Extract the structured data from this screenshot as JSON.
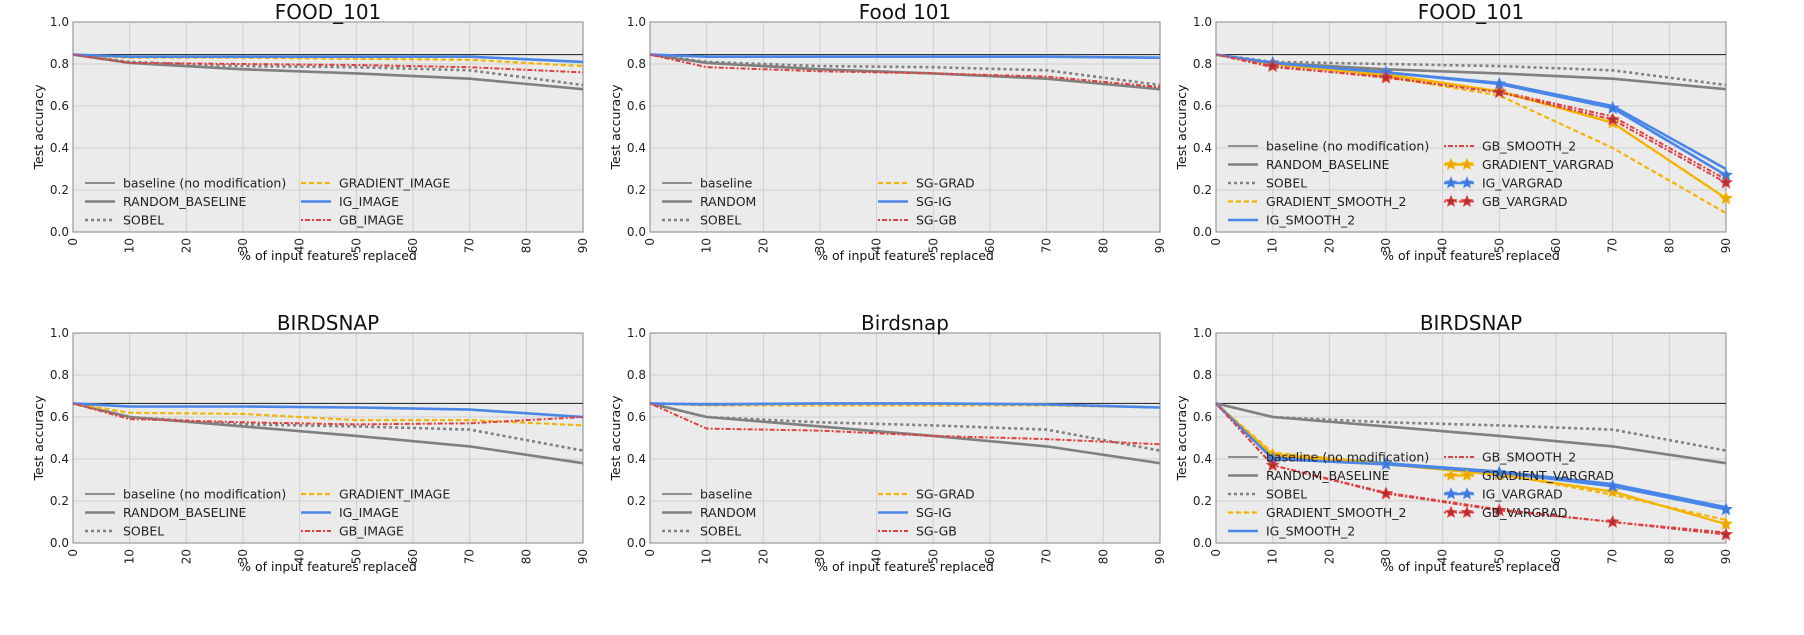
{
  "colors": {
    "baseline": "#333333",
    "random": "#808080",
    "sobel": "#808080",
    "gradient": "#f5b400",
    "ig": "#4a86e8",
    "gb": "#e04040",
    "vargrad_gb": "#b03030",
    "axes_bg": "#ebebeb",
    "grid": "#cfcfcf"
  },
  "chart_data": [
    {
      "type": "line",
      "title": "FOOD_101",
      "xlabel": "% of input features replaced",
      "ylabel": "Test accuracy",
      "xlim": [
        0,
        90
      ],
      "ylim": [
        0.0,
        1.0
      ],
      "xticks": [
        "0",
        "10",
        "20",
        "30",
        "40",
        "50",
        "60",
        "70",
        "80",
        "90"
      ],
      "yticks": [
        "0.0",
        "0.2",
        "0.4",
        "0.6",
        "0.8",
        "1.0"
      ],
      "grid": true,
      "legend_position": "bottom-left",
      "legend_cols": 2,
      "x": [
        0,
        10,
        30,
        50,
        70,
        90
      ],
      "series": [
        {
          "name": "baseline (no modification)",
          "style": "baseline",
          "values": [
            0.845,
            0.845,
            0.845,
            0.845,
            0.845,
            0.845
          ]
        },
        {
          "name": "RANDOM_BASELINE",
          "style": "random",
          "values": [
            0.845,
            0.805,
            0.775,
            0.755,
            0.73,
            0.68
          ]
        },
        {
          "name": "SOBEL",
          "style": "sobel",
          "values": [
            0.845,
            0.81,
            0.79,
            0.785,
            0.77,
            0.7
          ]
        },
        {
          "name": "GRADIENT_IMAGE",
          "style": "gradient",
          "values": [
            0.845,
            0.83,
            0.83,
            0.825,
            0.82,
            0.79
          ]
        },
        {
          "name": "IG_IMAGE",
          "style": "ig",
          "values": [
            0.845,
            0.835,
            0.835,
            0.835,
            0.835,
            0.81
          ]
        },
        {
          "name": "GB_IMAGE",
          "style": "gb",
          "values": [
            0.845,
            0.805,
            0.8,
            0.795,
            0.785,
            0.76
          ]
        }
      ]
    },
    {
      "type": "line",
      "title": "Food 101",
      "xlabel": "% of input features replaced",
      "ylabel": "Test accuracy",
      "xlim": [
        0,
        90
      ],
      "ylim": [
        0.0,
        1.0
      ],
      "xticks": [
        "0",
        "10",
        "20",
        "30",
        "40",
        "50",
        "60",
        "70",
        "80",
        "90"
      ],
      "yticks": [
        "0.0",
        "0.2",
        "0.4",
        "0.6",
        "0.8",
        "1.0"
      ],
      "grid": true,
      "legend_position": "bottom-left",
      "legend_cols": 2,
      "x": [
        0,
        10,
        30,
        50,
        70,
        90
      ],
      "series": [
        {
          "name": "baseline",
          "style": "baseline",
          "values": [
            0.845,
            0.845,
            0.845,
            0.845,
            0.845,
            0.845
          ]
        },
        {
          "name": "RANDOM",
          "style": "random",
          "values": [
            0.845,
            0.805,
            0.775,
            0.755,
            0.73,
            0.68
          ]
        },
        {
          "name": "SOBEL",
          "style": "sobel",
          "values": [
            0.845,
            0.81,
            0.79,
            0.785,
            0.77,
            0.7
          ]
        },
        {
          "name": "SG-GRAD",
          "style": "gradient",
          "values": [
            0.845,
            0.835,
            0.835,
            0.835,
            0.835,
            0.83
          ]
        },
        {
          "name": "SG-IG",
          "style": "ig",
          "values": [
            0.845,
            0.835,
            0.835,
            0.835,
            0.835,
            0.83
          ]
        },
        {
          "name": "SG-GB",
          "style": "gb",
          "values": [
            0.845,
            0.785,
            0.765,
            0.755,
            0.74,
            0.69
          ]
        }
      ]
    },
    {
      "type": "line",
      "title": "FOOD_101",
      "xlabel": "% of input features replaced",
      "ylabel": "Test accuracy",
      "xlim": [
        0,
        90
      ],
      "ylim": [
        0.0,
        1.0
      ],
      "xticks": [
        "0",
        "10",
        "20",
        "30",
        "40",
        "50",
        "60",
        "70",
        "80",
        "90"
      ],
      "yticks": [
        "0.0",
        "0.2",
        "0.4",
        "0.6",
        "0.8",
        "1.0"
      ],
      "grid": true,
      "legend_position": "bottom-left",
      "legend_cols": 2,
      "x": [
        0,
        10,
        30,
        50,
        70,
        90
      ],
      "series": [
        {
          "name": "baseline (no modification)",
          "style": "baseline",
          "values": [
            0.845,
            0.845,
            0.845,
            0.845,
            0.845,
            0.845
          ]
        },
        {
          "name": "RANDOM_BASELINE",
          "style": "random",
          "values": [
            0.845,
            0.805,
            0.775,
            0.755,
            0.73,
            0.68
          ]
        },
        {
          "name": "SOBEL",
          "style": "sobel",
          "values": [
            0.845,
            0.81,
            0.8,
            0.79,
            0.77,
            0.7
          ]
        },
        {
          "name": "GRADIENT_SMOOTH_2",
          "style": "gradient",
          "values": [
            0.845,
            0.8,
            0.74,
            0.65,
            0.4,
            0.09
          ]
        },
        {
          "name": "IG_SMOOTH_2",
          "style": "ig",
          "values": [
            0.845,
            0.805,
            0.76,
            0.71,
            0.6,
            0.3
          ]
        },
        {
          "name": "GB_SMOOTH_2",
          "style": "gb",
          "values": [
            0.845,
            0.785,
            0.74,
            0.67,
            0.55,
            0.25
          ]
        },
        {
          "name": "GRADIENT_VARGRAD",
          "style": "gradient_vg",
          "values": [
            0.845,
            0.8,
            0.75,
            0.67,
            0.52,
            0.16
          ]
        },
        {
          "name": "IG_VARGRAD",
          "style": "ig_vg",
          "values": [
            0.845,
            0.805,
            0.76,
            0.705,
            0.59,
            0.27
          ]
        },
        {
          "name": "GB_VARGRAD",
          "style": "gb_vg",
          "values": [
            0.845,
            0.79,
            0.735,
            0.665,
            0.535,
            0.235
          ]
        }
      ]
    },
    {
      "type": "line",
      "title": "BIRDSNAP",
      "xlabel": "% of input features replaced",
      "ylabel": "Test accuracy",
      "xlim": [
        0,
        90
      ],
      "ylim": [
        0.0,
        1.0
      ],
      "xticks": [
        "0",
        "10",
        "20",
        "30",
        "40",
        "50",
        "60",
        "70",
        "80",
        "90"
      ],
      "yticks": [
        "0.0",
        "0.2",
        "0.4",
        "0.6",
        "0.8",
        "1.0"
      ],
      "grid": true,
      "legend_position": "bottom-left",
      "legend_cols": 2,
      "x": [
        0,
        10,
        30,
        50,
        70,
        90
      ],
      "series": [
        {
          "name": "baseline (no modification)",
          "style": "baseline",
          "values": [
            0.665,
            0.665,
            0.665,
            0.665,
            0.665,
            0.665
          ]
        },
        {
          "name": "RANDOM_BASELINE",
          "style": "random",
          "values": [
            0.665,
            0.6,
            0.555,
            0.51,
            0.46,
            0.38
          ]
        },
        {
          "name": "SOBEL",
          "style": "sobel",
          "values": [
            0.665,
            0.6,
            0.565,
            0.555,
            0.54,
            0.44
          ]
        },
        {
          "name": "GRADIENT_IMAGE",
          "style": "gradient",
          "values": [
            0.665,
            0.62,
            0.615,
            0.585,
            0.585,
            0.56
          ]
        },
        {
          "name": "IG_IMAGE",
          "style": "ig",
          "values": [
            0.665,
            0.65,
            0.65,
            0.645,
            0.635,
            0.6
          ]
        },
        {
          "name": "GB_IMAGE",
          "style": "gb",
          "values": [
            0.665,
            0.59,
            0.575,
            0.565,
            0.57,
            0.6
          ]
        }
      ]
    },
    {
      "type": "line",
      "title": "Birdsnap",
      "xlabel": "% of input features replaced",
      "ylabel": "Test accuracy",
      "xlim": [
        0,
        90
      ],
      "ylim": [
        0.0,
        1.0
      ],
      "xticks": [
        "0",
        "10",
        "20",
        "30",
        "40",
        "50",
        "60",
        "70",
        "80",
        "90"
      ],
      "yticks": [
        "0.0",
        "0.2",
        "0.4",
        "0.6",
        "0.8",
        "1.0"
      ],
      "grid": true,
      "legend_position": "bottom-left",
      "legend_cols": 2,
      "x": [
        0,
        10,
        30,
        50,
        70,
        90
      ],
      "series": [
        {
          "name": "baseline",
          "style": "baseline",
          "values": [
            0.665,
            0.665,
            0.665,
            0.665,
            0.665,
            0.665
          ]
        },
        {
          "name": "RANDOM",
          "style": "random",
          "values": [
            0.665,
            0.6,
            0.555,
            0.51,
            0.46,
            0.38
          ]
        },
        {
          "name": "SOBEL",
          "style": "sobel",
          "values": [
            0.665,
            0.6,
            0.575,
            0.56,
            0.54,
            0.44
          ]
        },
        {
          "name": "SG-GRAD",
          "style": "gradient",
          "values": [
            0.665,
            0.655,
            0.655,
            0.655,
            0.655,
            0.645
          ]
        },
        {
          "name": "SG-IG",
          "style": "ig",
          "values": [
            0.665,
            0.66,
            0.665,
            0.665,
            0.66,
            0.645
          ]
        },
        {
          "name": "SG-GB",
          "style": "gb",
          "values": [
            0.665,
            0.545,
            0.535,
            0.51,
            0.495,
            0.47
          ]
        }
      ]
    },
    {
      "type": "line",
      "title": "BIRDSNAP",
      "xlabel": "% of input features replaced",
      "ylabel": "Test accuracy",
      "xlim": [
        0,
        90
      ],
      "ylim": [
        0.0,
        1.0
      ],
      "xticks": [
        "0",
        "10",
        "20",
        "30",
        "40",
        "50",
        "60",
        "70",
        "80",
        "90"
      ],
      "yticks": [
        "0.0",
        "0.2",
        "0.4",
        "0.6",
        "0.8",
        "1.0"
      ],
      "grid": true,
      "legend_position": "bottom-left",
      "legend_cols": 2,
      "x": [
        0,
        10,
        30,
        50,
        70,
        90
      ],
      "series": [
        {
          "name": "baseline (no modification)",
          "style": "baseline",
          "values": [
            0.665,
            0.665,
            0.665,
            0.665,
            0.665,
            0.665
          ]
        },
        {
          "name": "RANDOM_BASELINE",
          "style": "random",
          "values": [
            0.665,
            0.6,
            0.555,
            0.51,
            0.46,
            0.38
          ]
        },
        {
          "name": "SOBEL",
          "style": "sobel",
          "values": [
            0.665,
            0.6,
            0.575,
            0.56,
            0.54,
            0.44
          ]
        },
        {
          "name": "GRADIENT_SMOOTH_2",
          "style": "gradient",
          "values": [
            0.665,
            0.43,
            0.38,
            0.33,
            0.23,
            0.11
          ]
        },
        {
          "name": "IG_SMOOTH_2",
          "style": "ig",
          "values": [
            0.665,
            0.41,
            0.38,
            0.34,
            0.28,
            0.17
          ]
        },
        {
          "name": "GB_SMOOTH_2",
          "style": "gb",
          "values": [
            0.665,
            0.37,
            0.24,
            0.16,
            0.1,
            0.05
          ]
        },
        {
          "name": "GRADIENT_VARGRAD",
          "style": "gradient_vg",
          "values": [
            0.665,
            0.42,
            0.375,
            0.325,
            0.245,
            0.09
          ]
        },
        {
          "name": "IG_VARGRAD",
          "style": "ig_vg",
          "values": [
            0.665,
            0.4,
            0.375,
            0.335,
            0.27,
            0.16
          ]
        },
        {
          "name": "GB_VARGRAD",
          "style": "gb_vg",
          "values": [
            0.665,
            0.37,
            0.235,
            0.155,
            0.1,
            0.04
          ]
        }
      ]
    }
  ]
}
